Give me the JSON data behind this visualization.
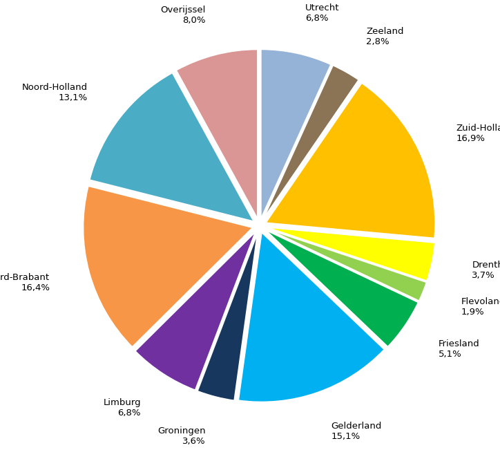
{
  "labels": [
    "Utrecht",
    "Zeeland",
    "Zuid-Holland",
    "Drenthe",
    "Flevoland",
    "Friesland",
    "Gelderland",
    "Groningen",
    "Limburg",
    "Noord-Brabant",
    "Noord-Holland",
    "Overijssel"
  ],
  "values": [
    6.8,
    2.8,
    16.9,
    3.7,
    1.9,
    5.1,
    15.1,
    3.6,
    6.8,
    16.4,
    13.1,
    8.0
  ],
  "colors": [
    "#95B3D7",
    "#8B7355",
    "#FFC000",
    "#FFFF00",
    "#92D050",
    "#00B050",
    "#00B0F0",
    "#17375E",
    "#7030A0",
    "#F79646",
    "#4BACC6",
    "#DA9694"
  ],
  "start_angle": 90,
  "counterclock": false,
  "background_color": "#FFFFFF",
  "label_distance": 1.28,
  "explode_amount": 0.04,
  "font_size": 9.5
}
